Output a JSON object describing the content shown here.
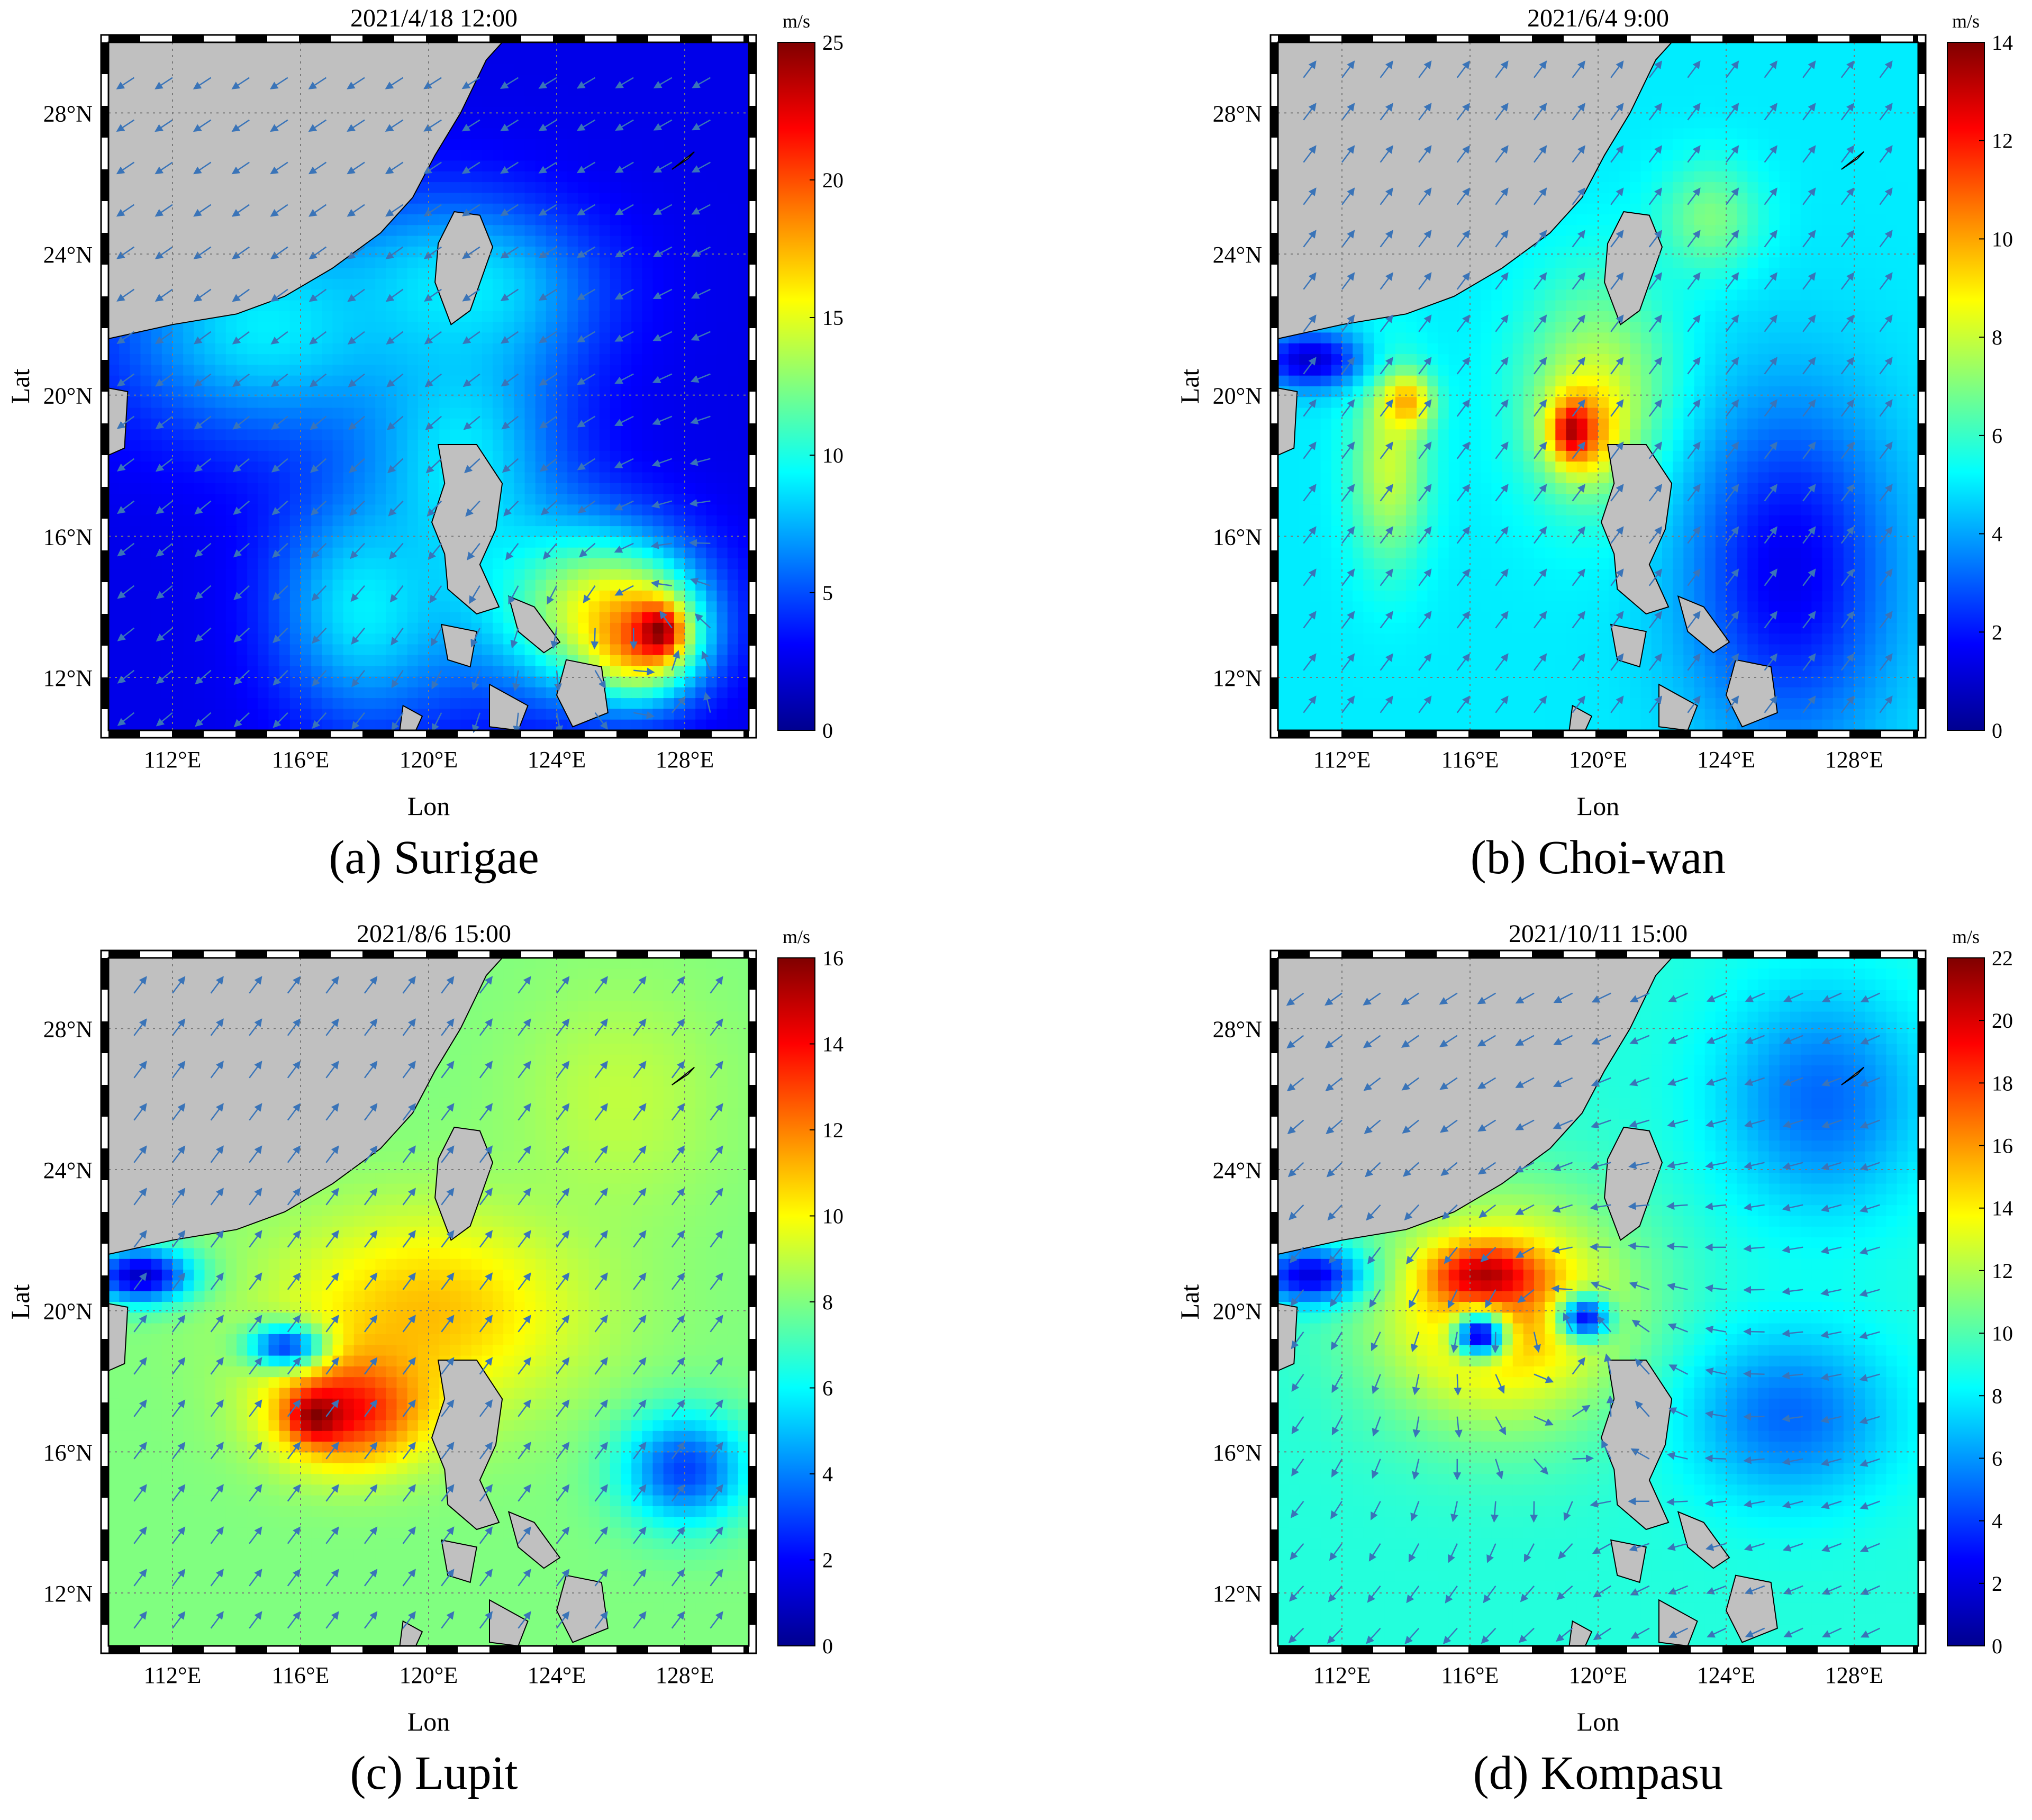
{
  "colors": {
    "land": "#c0c0c0",
    "arrow": "#3a74b8",
    "grid": "#7a7a7a",
    "colormap": [
      "#00008f",
      "#0000ff",
      "#0080ff",
      "#00ffff",
      "#80ff80",
      "#ffff00",
      "#ff8000",
      "#ff0000",
      "#800000"
    ]
  },
  "axes": {
    "lon_ticks": [
      "112°E",
      "116°E",
      "120°E",
      "124°E",
      "128°E"
    ],
    "lat_ticks": [
      "28°N",
      "24°N",
      "20°N",
      "16°N",
      "12°N"
    ],
    "xlabel": "Lon",
    "ylabel": "Lat",
    "lon_range": [
      110,
      130
    ],
    "lat_range": [
      10.5,
      30
    ]
  },
  "panels": [
    {
      "id": "a",
      "time": "2021/4/18 12:00",
      "caption": "(a) Surigae",
      "unit": "m/s",
      "colorbar": {
        "min": 0,
        "max": 25,
        "ticks": [
          "25",
          "20",
          "15",
          "10",
          "5",
          "0"
        ]
      },
      "wind_field": {
        "background": 2.5,
        "blobs": [
          {
            "lon": 115,
            "lat": 22,
            "rlon": 6,
            "rlat": 4,
            "value": 9
          },
          {
            "lon": 121,
            "lat": 18,
            "rlon": 4,
            "rlat": 6,
            "value": 9
          },
          {
            "lon": 118,
            "lat": 14,
            "rlon": 3.5,
            "rlat": 4,
            "value": 9
          },
          {
            "lon": 121,
            "lat": 23,
            "rlon": 5,
            "rlat": 3,
            "value": 9
          },
          {
            "lon": 125,
            "lat": 14,
            "rlon": 4,
            "rlat": 3,
            "value": 14
          },
          {
            "lon": 126.6,
            "lat": 13.2,
            "rlon": 2.2,
            "rlat": 2,
            "value": 20
          },
          {
            "lon": 127.2,
            "lat": 13.3,
            "rlon": 0.8,
            "rlat": 0.8,
            "value": 25
          }
        ]
      },
      "wind_flow": "cyclone",
      "cyclone_center": {
        "lon": 126.6,
        "lat": 13.4
      }
    },
    {
      "id": "b",
      "time": "2021/6/4 9:00",
      "caption": "(b) Choi-wan",
      "unit": "m/s",
      "colorbar": {
        "min": 0,
        "max": 14,
        "ticks": [
          "14",
          "12",
          "10",
          "8",
          "6",
          "4",
          "2",
          "0"
        ]
      },
      "wind_field": {
        "background": 5,
        "blobs": [
          {
            "lon": 113.5,
            "lat": 18,
            "rlon": 1.5,
            "rlat": 3.5,
            "value": 8
          },
          {
            "lon": 114,
            "lat": 19.8,
            "rlon": 1,
            "rlat": 1,
            "value": 10
          },
          {
            "lon": 120,
            "lat": 20,
            "rlon": 3,
            "rlat": 4,
            "value": 8
          },
          {
            "lon": 119.5,
            "lat": 19,
            "rlon": 1.4,
            "rlat": 1.6,
            "value": 11
          },
          {
            "lon": 119.2,
            "lat": 19,
            "rlon": 0.6,
            "rlat": 0.8,
            "value": 13.5
          },
          {
            "lon": 123.5,
            "lat": 25,
            "rlon": 2,
            "rlat": 2,
            "value": 7
          },
          {
            "lon": 126,
            "lat": 15,
            "rlon": 4,
            "rlat": 6,
            "value": 1.5
          },
          {
            "lon": 111,
            "lat": 21,
            "rlon": 2,
            "rlat": 1,
            "value": 1
          }
        ]
      },
      "wind_flow": "southwesterly",
      "cyclone_center": {
        "lon": 119.3,
        "lat": 19.0
      }
    },
    {
      "id": "c",
      "time": "2021/8/6 15:00",
      "caption": "(c) Lupit",
      "unit": "m/s",
      "colorbar": {
        "min": 0,
        "max": 16,
        "ticks": [
          "16",
          "14",
          "12",
          "10",
          "8",
          "6",
          "4",
          "2",
          "0"
        ]
      },
      "wind_field": {
        "background": 8,
        "blobs": [
          {
            "lon": 120,
            "lat": 20,
            "rlon": 6,
            "rlat": 3.5,
            "value": 11
          },
          {
            "lon": 117.5,
            "lat": 17.2,
            "rlon": 3,
            "rlat": 2,
            "value": 14
          },
          {
            "lon": 116.5,
            "lat": 17,
            "rlon": 1,
            "rlat": 0.8,
            "value": 16
          },
          {
            "lon": 115.5,
            "lat": 19,
            "rlon": 1.5,
            "rlat": 0.8,
            "value": 3
          },
          {
            "lon": 128,
            "lat": 15.5,
            "rlon": 2.5,
            "rlat": 2,
            "value": 3
          },
          {
            "lon": 111,
            "lat": 21,
            "rlon": 2,
            "rlat": 1,
            "value": 1
          },
          {
            "lon": 126,
            "lat": 26,
            "rlon": 4,
            "rlat": 4,
            "value": 9
          }
        ]
      },
      "wind_flow": "southwesterly",
      "cyclone_center": {
        "lon": 116.8,
        "lat": 17.2
      }
    },
    {
      "id": "d",
      "time": "2021/10/11 15:00",
      "caption": "(d) Kompasu",
      "unit": "m/s",
      "colorbar": {
        "min": 0,
        "max": 22,
        "ticks": [
          "22",
          "20",
          "18",
          "16",
          "14",
          "12",
          "10",
          "8",
          "6",
          "4",
          "2",
          "0"
        ]
      },
      "wind_field": {
        "background": 9,
        "blobs": [
          {
            "lon": 117,
            "lat": 20,
            "rlon": 5,
            "rlat": 4,
            "value": 16
          },
          {
            "lon": 116.5,
            "lat": 21,
            "rlon": 2,
            "rlat": 1,
            "value": 21
          },
          {
            "lon": 116.3,
            "lat": 19.3,
            "rlon": 1,
            "rlat": 0.8,
            "value": 2
          },
          {
            "lon": 119.6,
            "lat": 19.8,
            "rlon": 1,
            "rlat": 0.8,
            "value": 3
          },
          {
            "lon": 127,
            "lat": 26,
            "rlon": 4,
            "rlat": 4,
            "value": 5
          },
          {
            "lon": 126,
            "lat": 17,
            "rlon": 4,
            "rlat": 3,
            "value": 5
          },
          {
            "lon": 111,
            "lat": 21,
            "rlon": 2,
            "rlat": 1,
            "value": 2
          }
        ]
      },
      "wind_flow": "cyclone",
      "cyclone_center": {
        "lon": 118.5,
        "lat": 19.5
      }
    }
  ]
}
